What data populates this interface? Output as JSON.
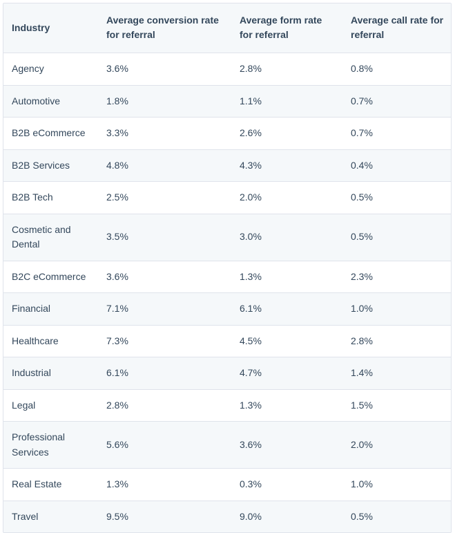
{
  "table": {
    "headers": [
      "Industry",
      "Average conversion rate for referral",
      "Average form rate for referral",
      "Average call rate for referral"
    ],
    "rows": [
      [
        "Agency",
        "3.6%",
        "2.8%",
        "0.8%"
      ],
      [
        "Automotive",
        "1.8%",
        "1.1%",
        "0.7%"
      ],
      [
        "B2B eCommerce",
        "3.3%",
        "2.6%",
        "0.7%"
      ],
      [
        "B2B Services",
        "4.8%",
        "4.3%",
        "0.4%"
      ],
      [
        "B2B Tech",
        "2.5%",
        "2.0%",
        "0.5%"
      ],
      [
        "Cosmetic and Dental",
        "3.5%",
        "3.0%",
        "0.5%"
      ],
      [
        "B2C eCommerce",
        "3.6%",
        "1.3%",
        "2.3%"
      ],
      [
        "Financial",
        "7.1%",
        "6.1%",
        "1.0%"
      ],
      [
        "Healthcare",
        "7.3%",
        "4.5%",
        "2.8%"
      ],
      [
        "Industrial",
        "6.1%",
        "4.7%",
        "1.4%"
      ],
      [
        "Legal",
        "2.8%",
        "1.3%",
        "1.5%"
      ],
      [
        "Professional Services",
        "5.6%",
        "3.6%",
        "2.0%"
      ],
      [
        "Real Estate",
        "1.3%",
        "0.3%",
        "1.0%"
      ],
      [
        "Travel",
        "9.5%",
        "9.0%",
        "0.5%"
      ]
    ]
  },
  "colors": {
    "text": "#33475b",
    "header_background": "#f5f8fa",
    "stripe_background": "#f5f8fa",
    "border": "#dfe3eb"
  }
}
